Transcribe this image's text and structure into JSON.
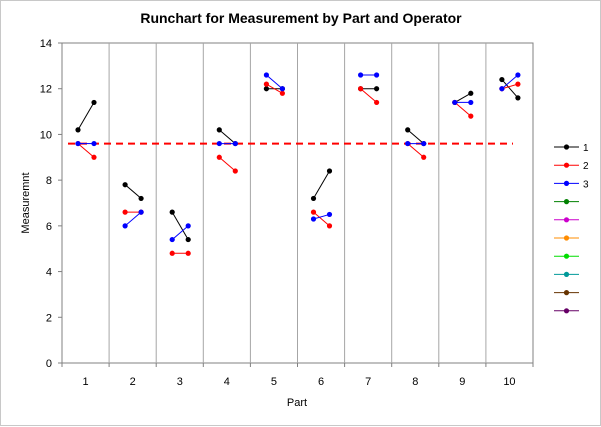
{
  "chart_data": {
    "type": "line",
    "title": "Runchart for Measurement by Part and Operator",
    "xlabel": "Part",
    "ylabel": "Measuremnt",
    "ylim": [
      0,
      14
    ],
    "yticks": [
      0,
      2,
      4,
      6,
      8,
      10,
      12,
      14
    ],
    "parts": [
      "1",
      "2",
      "3",
      "4",
      "5",
      "6",
      "7",
      "8",
      "9",
      "10"
    ],
    "grid": "vertical separators between parts",
    "reference_line": {
      "value": 9.6,
      "style": "dashed",
      "color": "#ff0000"
    },
    "legend_position": "right",
    "series": [
      {
        "name": "1",
        "color": "#000000",
        "values": [
          [
            10.2,
            11.4
          ],
          [
            7.8,
            7.2
          ],
          [
            6.6,
            5.4
          ],
          [
            10.2,
            9.6
          ],
          [
            12.0,
            12.0
          ],
          [
            7.2,
            8.4
          ],
          [
            12.0,
            12.0
          ],
          [
            10.2,
            9.6
          ],
          [
            11.4,
            11.8
          ],
          [
            12.4,
            11.6
          ]
        ]
      },
      {
        "name": "2",
        "color": "#ff0000",
        "values": [
          [
            9.6,
            9.0
          ],
          [
            6.6,
            6.6
          ],
          [
            4.8,
            4.8
          ],
          [
            9.0,
            8.4
          ],
          [
            12.2,
            11.8
          ],
          [
            6.6,
            6.0
          ],
          [
            12.0,
            11.4
          ],
          [
            9.6,
            9.0
          ],
          [
            11.4,
            10.8
          ],
          [
            12.0,
            12.2
          ]
        ]
      },
      {
        "name": "3",
        "color": "#0000ff",
        "values": [
          [
            9.6,
            9.6
          ],
          [
            6.0,
            6.6
          ],
          [
            5.4,
            6.0
          ],
          [
            9.6,
            9.6
          ],
          [
            12.6,
            12.0
          ],
          [
            6.3,
            6.5
          ],
          [
            12.6,
            12.6
          ],
          [
            9.6,
            9.6
          ],
          [
            11.4,
            11.4
          ],
          [
            12.0,
            12.6
          ]
        ]
      }
    ],
    "legend_extra_colors": [
      "#008000",
      "#cc00cc",
      "#ff8c00",
      "#00dd00",
      "#009999",
      "#663300",
      "#660066"
    ]
  }
}
